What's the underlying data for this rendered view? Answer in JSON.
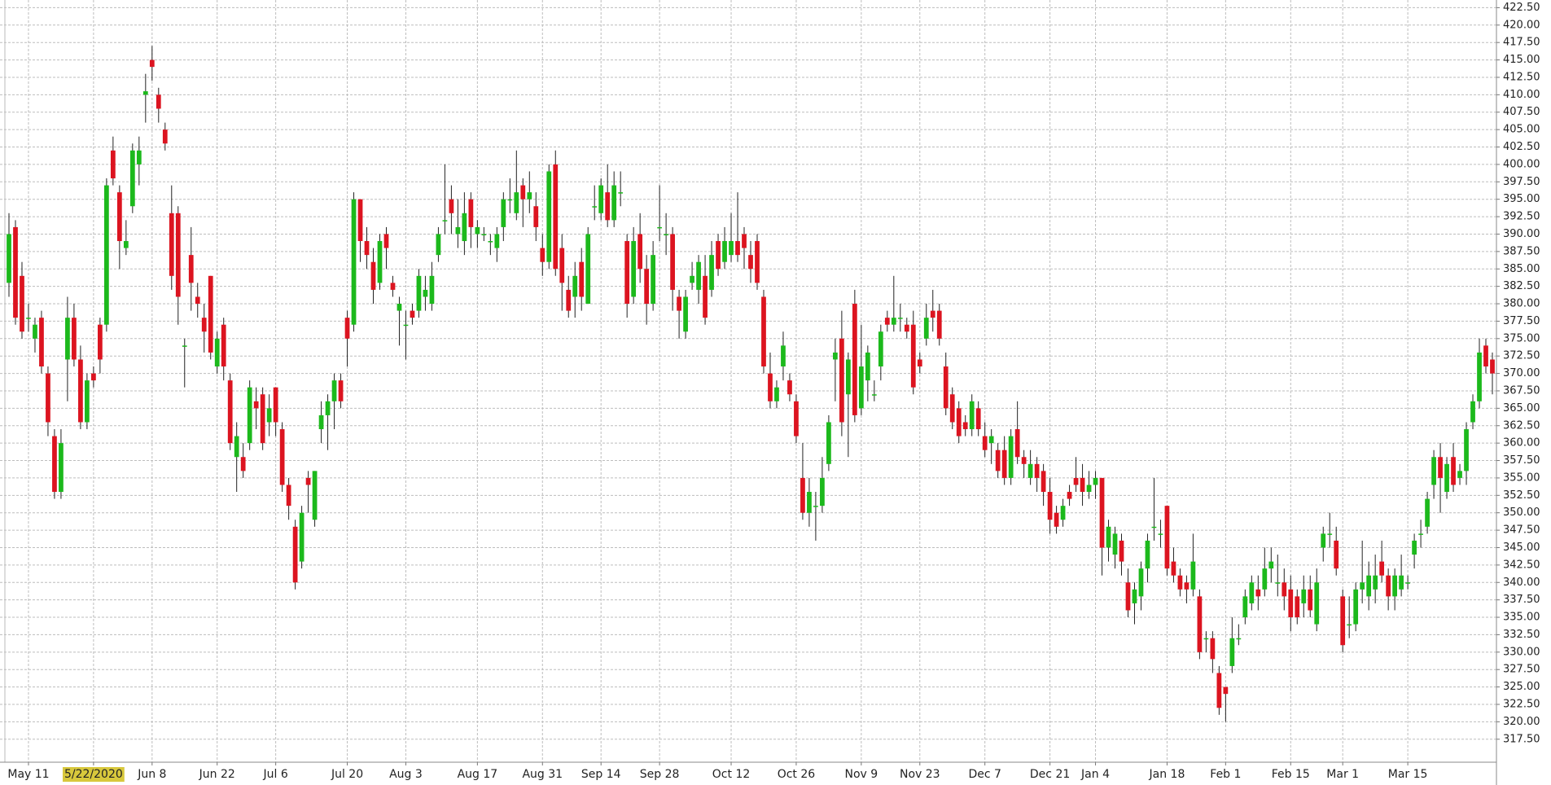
{
  "chart_data": {
    "type": "candlestick",
    "categories": [
      null,
      null,
      null,
      "May 11",
      null,
      null,
      null,
      null,
      null,
      null,
      null,
      null,
      null,
      "5/22/2020",
      null,
      null,
      null,
      null,
      null,
      null,
      null,
      null,
      "Jun 8",
      null,
      null,
      null,
      null,
      null,
      null,
      null,
      null,
      null,
      "Jun 22",
      null,
      null,
      null,
      null,
      null,
      null,
      null,
      null,
      "Jul 6",
      null,
      null,
      null,
      null,
      null,
      null,
      null,
      null,
      null,
      null,
      "Jul 20",
      null,
      null,
      null,
      null,
      null,
      null,
      null,
      null,
      "Aug 3",
      null,
      null,
      null,
      null,
      null,
      null,
      null,
      null,
      null,
      null,
      "Aug 17",
      null,
      null,
      null,
      null,
      null,
      null,
      null,
      null,
      null,
      "Aug 31",
      null,
      null,
      null,
      null,
      null,
      null,
      null,
      null,
      "Sep 14",
      null,
      null,
      null,
      null,
      null,
      null,
      null,
      null,
      "Sep 28",
      null,
      null,
      null,
      null,
      null,
      null,
      null,
      null,
      null,
      null,
      "Oct 12",
      null,
      null,
      null,
      null,
      null,
      null,
      null,
      null,
      null,
      "Oct 26",
      null,
      null,
      null,
      null,
      null,
      null,
      null,
      null,
      null,
      "Nov 9",
      null,
      null,
      null,
      null,
      null,
      null,
      null,
      null,
      "Nov 23",
      null,
      null,
      null,
      null,
      null,
      null,
      null,
      null,
      null,
      "Dec 7",
      null,
      null,
      null,
      null,
      null,
      null,
      null,
      null,
      null,
      "Dec 21",
      null,
      null,
      null,
      null,
      null,
      null,
      "Jan 4",
      null,
      null,
      null,
      null,
      null,
      null,
      null,
      null,
      null,
      null,
      "Jan 18",
      null,
      null,
      null,
      null,
      null,
      null,
      null,
      null,
      "Feb 1",
      null,
      null,
      null,
      null,
      null,
      null,
      null,
      null,
      null,
      "Feb 15",
      null,
      null,
      null,
      null,
      null,
      null,
      null,
      "Mar 1",
      null,
      null,
      null,
      null,
      null,
      null,
      null,
      null,
      null,
      "Mar 15",
      null,
      null,
      null,
      null,
      null,
      null,
      null,
      null,
      null,
      null,
      null,
      null,
      null
    ],
    "open": [
      383,
      391,
      384,
      378,
      375,
      378,
      370,
      361,
      353,
      372,
      378,
      372,
      363,
      370,
      377,
      377,
      402,
      396,
      388,
      394,
      400,
      410,
      415,
      410,
      405,
      393,
      393,
      374,
      387,
      381,
      378,
      384,
      371,
      377,
      369,
      358,
      358,
      360,
      366,
      367,
      363,
      368,
      362,
      354,
      348,
      343,
      355,
      349,
      362,
      364,
      366,
      369,
      378,
      377,
      395,
      389,
      386,
      383,
      390,
      383,
      379,
      377,
      379,
      379,
      381,
      380,
      387,
      392,
      395,
      390,
      389,
      395,
      390,
      390,
      389,
      388,
      391,
      395,
      393,
      397,
      395,
      394,
      388,
      386,
      400,
      388,
      382,
      381,
      386,
      380,
      394,
      393,
      396,
      392,
      396,
      389,
      381,
      390,
      385,
      380,
      391,
      390,
      390,
      381,
      376,
      383,
      382,
      384,
      382,
      389,
      386,
      387,
      389,
      390,
      387,
      389,
      381,
      370,
      366,
      371,
      369,
      366,
      355,
      350,
      351,
      351,
      357,
      372,
      375,
      367,
      380,
      365,
      369,
      367,
      371,
      378,
      377,
      378,
      377,
      377,
      372,
      375,
      379,
      379,
      371,
      367,
      365,
      363,
      362,
      365,
      361,
      360,
      359,
      359,
      355,
      362,
      358,
      355,
      357,
      356,
      353,
      350,
      349,
      353,
      355,
      355,
      353,
      354,
      355,
      345,
      344,
      346,
      340,
      337,
      338,
      342,
      348,
      347,
      351,
      343,
      341,
      340,
      339,
      338,
      332,
      332,
      327,
      325,
      328,
      332,
      335,
      337,
      339,
      339,
      342,
      340,
      340,
      339,
      338,
      337,
      339,
      334,
      345,
      347,
      346,
      338,
      334,
      334,
      339,
      338,
      339,
      343,
      341,
      338,
      339,
      340,
      344,
      347,
      348,
      354,
      358,
      353,
      358,
      355,
      356,
      363,
      366,
      374,
      372
    ],
    "high": [
      393,
      392,
      386,
      380,
      378,
      379,
      371,
      362,
      362,
      381,
      380,
      374,
      370,
      371,
      378,
      398,
      404,
      397,
      392,
      403,
      404,
      413,
      417,
      411,
      406,
      397,
      394,
      375,
      391,
      383,
      380,
      384,
      376,
      378,
      370,
      363,
      360,
      369,
      368,
      368,
      367,
      368,
      363,
      355,
      349,
      351,
      356,
      356,
      366,
      367,
      370,
      370,
      379,
      396,
      395,
      391,
      388,
      390,
      391,
      384,
      381,
      379,
      380,
      385,
      384,
      386,
      391,
      400,
      397,
      395,
      396,
      396,
      392,
      391,
      390,
      391,
      396,
      398,
      402,
      398,
      399,
      396,
      390,
      400,
      402,
      390,
      384,
      386,
      388,
      391,
      397,
      398,
      400,
      399,
      399,
      390,
      391,
      393,
      387,
      389,
      397,
      393,
      391,
      382,
      382,
      386,
      387,
      387,
      389,
      390,
      391,
      393,
      396,
      391,
      389,
      390,
      382,
      373,
      369,
      376,
      370,
      367,
      360,
      355,
      353,
      358,
      364,
      375,
      379,
      373,
      382,
      377,
      374,
      369,
      377,
      379,
      384,
      380,
      378,
      379,
      373,
      380,
      382,
      380,
      373,
      368,
      366,
      364,
      367,
      366,
      363,
      362,
      360,
      361,
      362,
      366,
      359,
      359,
      358,
      357,
      355,
      351,
      352,
      354,
      358,
      357,
      356,
      356,
      355,
      349,
      348,
      347,
      342,
      340,
      343,
      347,
      355,
      349,
      351,
      345,
      342,
      341,
      347,
      339,
      333,
      333,
      328,
      325,
      335,
      334,
      339,
      341,
      341,
      345,
      345,
      344,
      342,
      341,
      339,
      341,
      341,
      342,
      348,
      350,
      348,
      339,
      338,
      340,
      346,
      343,
      344,
      346,
      342,
      342,
      344,
      341,
      347,
      349,
      353,
      359,
      360,
      358,
      360,
      357,
      363,
      367,
      375,
      375,
      373
    ],
    "low": [
      381,
      377,
      375,
      376,
      373,
      370,
      361,
      352,
      352,
      366,
      371,
      362,
      362,
      368,
      370,
      376,
      397,
      385,
      387,
      393,
      397,
      406,
      412,
      406,
      402,
      382,
      377,
      368,
      379,
      378,
      373,
      372,
      370,
      369,
      359,
      353,
      355,
      359,
      362,
      359,
      361,
      361,
      353,
      349,
      339,
      342,
      350,
      348,
      360,
      359,
      362,
      365,
      371,
      376,
      386,
      385,
      380,
      382,
      385,
      381,
      374,
      372,
      377,
      378,
      379,
      379,
      386,
      390,
      390,
      388,
      387,
      388,
      388,
      389,
      387,
      386,
      389,
      393,
      392,
      391,
      393,
      389,
      384,
      385,
      384,
      379,
      378,
      378,
      379,
      380,
      392,
      392,
      391,
      391,
      394,
      378,
      380,
      383,
      377,
      379,
      389,
      387,
      379,
      375,
      375,
      382,
      380,
      377,
      381,
      384,
      385,
      386,
      386,
      385,
      383,
      382,
      370,
      365,
      365,
      369,
      366,
      360,
      349,
      348,
      346,
      350,
      356,
      366,
      361,
      358,
      363,
      364,
      366,
      366,
      369,
      376,
      376,
      376,
      375,
      367,
      370,
      374,
      376,
      374,
      364,
      362,
      360,
      361,
      361,
      361,
      358,
      357,
      355,
      354,
      354,
      357,
      355,
      354,
      353,
      351,
      347,
      347,
      348,
      351,
      353,
      351,
      352,
      352,
      341,
      343,
      342,
      341,
      335,
      334,
      336,
      340,
      346,
      345,
      341,
      340,
      338,
      337,
      338,
      329,
      330,
      327,
      321,
      320,
      327,
      331,
      334,
      336,
      336,
      338,
      340,
      338,
      336,
      333,
      334,
      335,
      335,
      333,
      343,
      345,
      341,
      330,
      332,
      333,
      337,
      336,
      337,
      340,
      336,
      336,
      338,
      339,
      342,
      345,
      347,
      352,
      350,
      352,
      353,
      354,
      354,
      362,
      365,
      370,
      367
    ],
    "close": [
      390,
      378,
      376,
      378,
      377,
      371,
      363,
      353,
      360,
      378,
      372,
      363,
      369,
      369,
      372,
      397,
      398,
      389,
      389,
      402,
      402,
      410.5,
      414,
      408,
      403,
      384,
      381,
      374,
      383,
      380,
      376,
      373,
      375,
      371,
      360,
      361,
      356,
      368,
      365,
      360,
      365,
      363,
      354,
      351,
      340,
      350,
      354,
      356,
      364,
      366,
      369,
      366,
      375,
      395,
      389,
      387,
      382,
      389,
      388,
      382,
      380,
      377,
      378,
      384,
      382,
      384,
      390,
      392,
      393,
      391,
      393,
      391,
      391,
      390,
      389,
      390,
      395,
      395,
      396,
      395,
      396,
      391,
      386,
      399,
      385,
      383,
      379,
      384,
      381,
      390,
      394,
      397,
      392,
      397,
      396,
      380,
      389,
      385,
      380,
      387,
      391,
      390,
      382,
      379,
      381,
      384,
      386,
      378,
      387,
      385,
      389,
      389,
      387,
      388,
      385,
      383,
      371,
      366,
      368,
      374,
      367,
      361,
      350,
      353,
      351,
      355,
      363,
      373,
      363,
      372,
      364,
      371,
      373,
      367,
      376,
      377,
      378,
      378,
      376,
      368,
      371,
      378,
      378,
      375,
      365,
      363,
      361,
      362,
      366,
      362,
      359,
      361,
      356,
      355,
      361,
      358,
      357,
      357,
      355,
      353,
      349,
      348,
      351,
      352,
      354,
      353,
      354,
      355,
      345,
      348,
      347,
      343,
      336,
      339,
      342,
      346,
      348,
      347,
      342,
      341,
      339,
      339,
      343,
      330,
      332,
      329,
      322,
      324,
      332,
      332,
      338,
      340,
      338,
      342,
      343,
      340,
      338,
      335,
      335,
      339,
      336,
      340,
      347,
      347,
      342,
      331,
      334,
      339,
      340,
      341,
      341,
      341,
      338,
      341,
      341,
      340,
      346,
      347,
      352,
      358,
      355,
      357,
      354,
      356,
      362,
      366,
      373,
      371,
      370
    ],
    "up_color": "#1cb91c",
    "down_color": "#dc1420",
    "wick_color": "#222222",
    "highlight_color": "#d8c83c",
    "ylim": [
      314.2,
      423.6
    ],
    "yticks": [
      {
        "value": 317.5,
        "label": "317.50"
      },
      {
        "value": 320,
        "label": "320.00"
      },
      {
        "value": 322.5,
        "label": "322.50"
      },
      {
        "value": 325,
        "label": "325.00"
      },
      {
        "value": 327.5,
        "label": "327.50"
      },
      {
        "value": 330,
        "label": "330.00"
      },
      {
        "value": 332.5,
        "label": "332.50"
      },
      {
        "value": 335,
        "label": "335.00"
      },
      {
        "value": 337.5,
        "label": "337.50"
      },
      {
        "value": 340,
        "label": "340.00"
      },
      {
        "value": 342.5,
        "label": "342.50"
      },
      {
        "value": 345,
        "label": "345.00"
      },
      {
        "value": 347.5,
        "label": "347.50"
      },
      {
        "value": 350,
        "label": "350.00"
      },
      {
        "value": 352.5,
        "label": "352.50"
      },
      {
        "value": 355,
        "label": "355.00"
      },
      {
        "value": 357.5,
        "label": "357.50"
      },
      {
        "value": 360,
        "label": "360.00"
      },
      {
        "value": 362.5,
        "label": "362.50"
      },
      {
        "value": 365,
        "label": "365.00"
      },
      {
        "value": 367.5,
        "label": "367.50"
      },
      {
        "value": 370,
        "label": "370.00"
      },
      {
        "value": 372.5,
        "label": "372.50"
      },
      {
        "value": 375,
        "label": "375.00"
      },
      {
        "value": 377.5,
        "label": "377.50"
      },
      {
        "value": 380,
        "label": "380.00"
      },
      {
        "value": 382.5,
        "label": "382.50"
      },
      {
        "value": 385,
        "label": "385.00"
      },
      {
        "value": 387.5,
        "label": "387.50"
      },
      {
        "value": 390,
        "label": "390.00"
      },
      {
        "value": 392.5,
        "label": "392.50"
      },
      {
        "value": 395,
        "label": "395.00"
      },
      {
        "value": 397.5,
        "label": "397.50"
      },
      {
        "value": 400,
        "label": "400.00"
      },
      {
        "value": 402.5,
        "label": "402.50"
      },
      {
        "value": 405,
        "label": "405.00"
      },
      {
        "value": 407.5,
        "label": "407.50"
      },
      {
        "value": 410,
        "label": "410.00"
      },
      {
        "value": 412.5,
        "label": "412.50"
      },
      {
        "value": 415,
        "label": "415.00"
      },
      {
        "value": 417.5,
        "label": "417.50"
      },
      {
        "value": 420,
        "label": "420.00"
      },
      {
        "value": 422.5,
        "label": "422.50"
      }
    ],
    "grid": true
  }
}
